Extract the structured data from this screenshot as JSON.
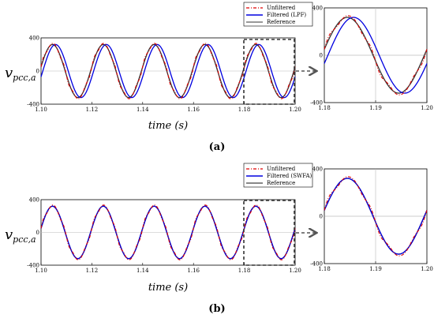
{
  "figure": {
    "panels": [
      {
        "caption": "(a)",
        "ylabel_main": "v",
        "ylabel_sub": "pcc,a",
        "xlabel": "time (s)",
        "legend": [
          "Unfiltered",
          "Filtered (LPF)",
          "Reference"
        ]
      },
      {
        "caption": "(b)",
        "ylabel_main": "v",
        "ylabel_sub": "pcc,a",
        "xlabel": "time (s)",
        "legend": [
          "Unfiltered",
          "Filtered (SWFA)",
          "Reference"
        ]
      }
    ]
  },
  "chart_data": [
    {
      "type": "line",
      "panel": "a-main",
      "xlim": [
        1.1,
        1.2
      ],
      "ylim": [
        -400,
        400
      ],
      "x_ticks": [
        "1.10",
        "1.12",
        "1.14",
        "1.16",
        "1.18",
        "1.20"
      ],
      "y_ticks": [
        "400",
        "0",
        "-400"
      ],
      "series": [
        {
          "name": "Unfiltered",
          "color": "#e00000",
          "style": "dash-dot",
          "amplitude": 325,
          "freq_hz": 50,
          "phase_shift_ms": 0
        },
        {
          "name": "Filtered (LPF)",
          "color": "#0000e0",
          "style": "solid",
          "amplitude": 320,
          "freq_hz": 50,
          "phase_shift_ms": 1.2
        },
        {
          "name": "Reference",
          "color": "#333333",
          "style": "solid",
          "amplitude": 320,
          "freq_hz": 50,
          "phase_shift_ms": 0
        }
      ],
      "zoom_region": [
        1.18,
        1.2
      ]
    },
    {
      "type": "line",
      "panel": "a-zoom",
      "xlim": [
        1.18,
        1.2
      ],
      "ylim": [
        -400,
        400
      ],
      "x_ticks": [
        "1.18",
        "1.19",
        "1.20"
      ],
      "y_ticks": [
        "400",
        "0",
        "-400"
      ]
    },
    {
      "type": "line",
      "panel": "b-main",
      "xlim": [
        1.1,
        1.2
      ],
      "ylim": [
        -400,
        400
      ],
      "x_ticks": [
        "1.10",
        "1.12",
        "1.14",
        "1.16",
        "1.18",
        "1.20"
      ],
      "y_ticks": [
        "400",
        "0",
        "-400"
      ],
      "series": [
        {
          "name": "Unfiltered",
          "color": "#e00000",
          "style": "dash-dot",
          "amplitude": 325,
          "freq_hz": 50,
          "phase_shift_ms": 0
        },
        {
          "name": "Filtered (SWFA)",
          "color": "#0000e0",
          "style": "solid",
          "amplitude": 320,
          "freq_hz": 50,
          "phase_shift_ms": 0
        },
        {
          "name": "Reference",
          "color": "#111111",
          "style": "solid",
          "amplitude": 320,
          "freq_hz": 50,
          "phase_shift_ms": 0
        }
      ],
      "zoom_region": [
        1.18,
        1.2
      ]
    },
    {
      "type": "line",
      "panel": "b-zoom",
      "xlim": [
        1.18,
        1.2
      ],
      "ylim": [
        -400,
        400
      ],
      "x_ticks": [
        "1.18",
        "1.19",
        "1.20"
      ],
      "y_ticks": [
        "400",
        "0",
        "-400"
      ]
    }
  ]
}
